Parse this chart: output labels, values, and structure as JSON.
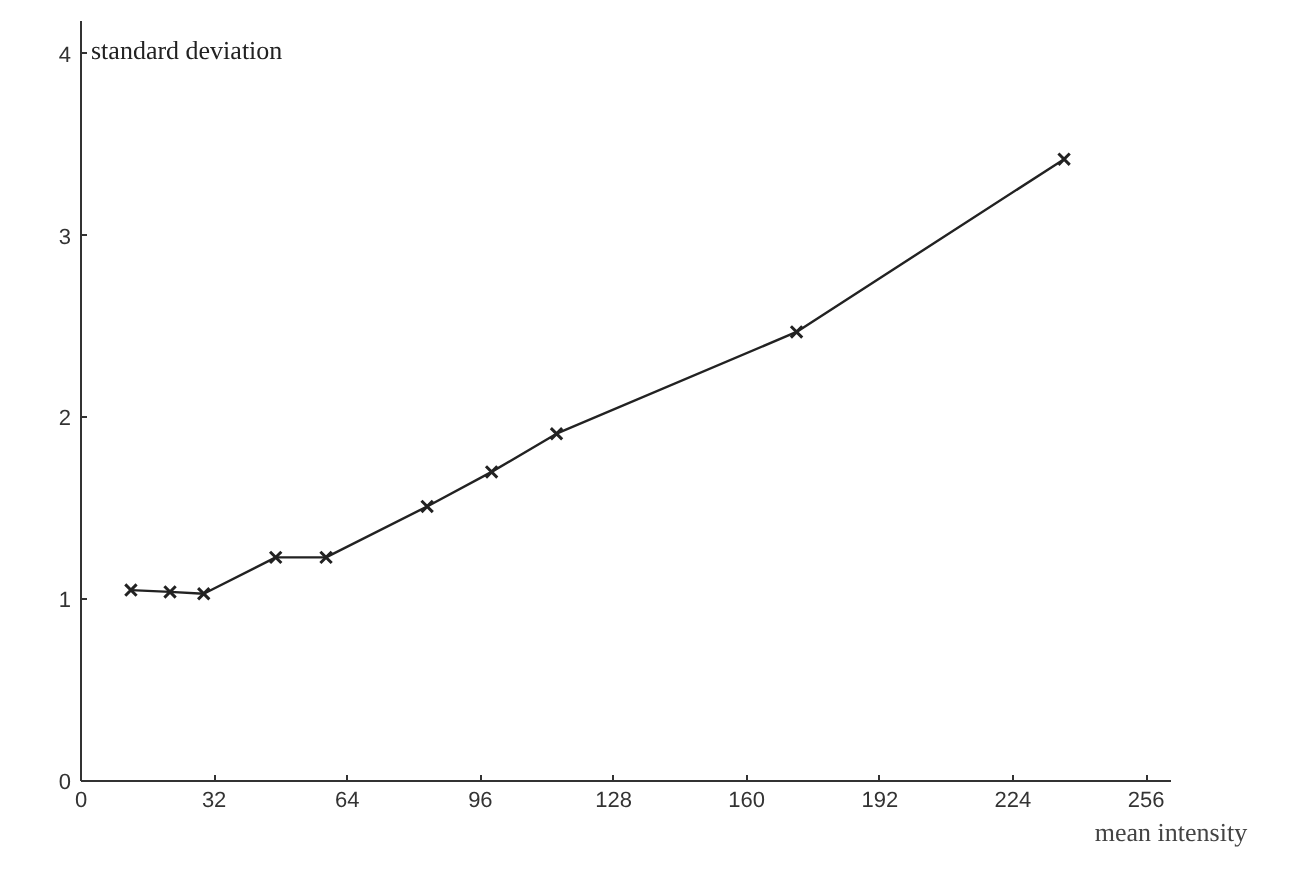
{
  "chart_data": {
    "type": "line",
    "xlabel": "mean intensity",
    "ylabel": "standard deviation",
    "x": [
      12,
      21.4,
      29.5,
      46.8,
      58.9,
      83.2,
      98.7,
      114.3,
      172,
      236.3
    ],
    "series": [
      {
        "color": "#222222",
        "values": [
          1.05,
          1.04,
          1.03,
          1.23,
          1.23,
          1.51,
          1.7,
          1.91,
          2.47,
          3.42
        ]
      }
    ],
    "xlim": [
      0,
      262
    ],
    "xticks": [
      0,
      32,
      64,
      96,
      128,
      160,
      192,
      224,
      256
    ],
    "ylim": [
      0,
      4.18
    ],
    "yticks": [
      0,
      1,
      2,
      3,
      4
    ],
    "grid": false,
    "marker": "cross",
    "line_style": "solid"
  }
}
